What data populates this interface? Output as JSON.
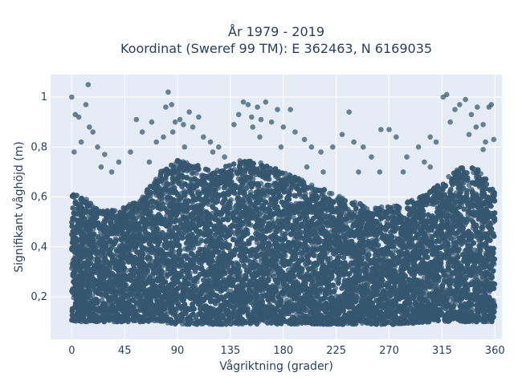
{
  "chart_data": {
    "type": "scatter",
    "title": "År 1979 - 2019",
    "subtitle": "Koordinat (Sweref 99 TM): E 362463, N 6169035",
    "xlabel": "Vågriktning (grader)",
    "ylabel": "Signifikant våghöjd (m)",
    "xlim": [
      -18,
      366
    ],
    "ylim": [
      0.03,
      1.09
    ],
    "xticks": [
      0,
      45,
      90,
      135,
      180,
      225,
      270,
      315,
      360
    ],
    "xtick_labels": [
      "0",
      "45",
      "90",
      "135",
      "180",
      "225",
      "270",
      "315",
      "360"
    ],
    "yticks": [
      0.2,
      0.4,
      0.6,
      0.8,
      1
    ],
    "ytick_labels": [
      "0,2",
      "0,4",
      "0,6",
      "0,8",
      "1"
    ],
    "grid": true,
    "marker_color": "#34566f",
    "plot_bg": "#e5ecf6",
    "density_band": {
      "note": "dense cloud of points; approximate lower and upper envelope of the bulk per direction",
      "x": [
        0,
        10,
        20,
        30,
        45,
        60,
        75,
        90,
        105,
        120,
        135,
        150,
        165,
        180,
        195,
        210,
        225,
        240,
        255,
        270,
        285,
        300,
        315,
        330,
        345,
        360
      ],
      "y_low": [
        0.1,
        0.1,
        0.1,
        0.1,
        0.1,
        0.1,
        0.1,
        0.09,
        0.09,
        0.09,
        0.09,
        0.09,
        0.09,
        0.09,
        0.09,
        0.09,
        0.09,
        0.09,
        0.09,
        0.09,
        0.09,
        0.1,
        0.1,
        0.1,
        0.1,
        0.1
      ],
      "y_high": [
        0.62,
        0.6,
        0.56,
        0.55,
        0.56,
        0.6,
        0.7,
        0.75,
        0.73,
        0.7,
        0.73,
        0.76,
        0.73,
        0.7,
        0.67,
        0.64,
        0.61,
        0.58,
        0.56,
        0.56,
        0.58,
        0.61,
        0.66,
        0.72,
        0.72,
        0.62
      ]
    },
    "outliers": [
      [
        0,
        1.0
      ],
      [
        3,
        0.93
      ],
      [
        6,
        0.92
      ],
      [
        12,
        0.97
      ],
      [
        14,
        1.05
      ],
      [
        15,
        0.88
      ],
      [
        18,
        0.86
      ],
      [
        8,
        0.82
      ],
      [
        22,
        0.8
      ],
      [
        28,
        0.77
      ],
      [
        40,
        0.74
      ],
      [
        50,
        0.78
      ],
      [
        55,
        0.91
      ],
      [
        60,
        0.86
      ],
      [
        68,
        0.9
      ],
      [
        72,
        0.82
      ],
      [
        78,
        0.84
      ],
      [
        80,
        0.96
      ],
      [
        82,
        1.02
      ],
      [
        85,
        0.97
      ],
      [
        88,
        0.9
      ],
      [
        92,
        0.91
      ],
      [
        95,
        0.89
      ],
      [
        100,
        0.94
      ],
      [
        103,
        0.88
      ],
      [
        108,
        0.92
      ],
      [
        112,
        0.84
      ],
      [
        118,
        0.82
      ],
      [
        125,
        0.8
      ],
      [
        138,
        0.89
      ],
      [
        142,
        0.93
      ],
      [
        146,
        0.98
      ],
      [
        150,
        0.97
      ],
      [
        153,
        0.92
      ],
      [
        158,
        0.96
      ],
      [
        161,
        0.91
      ],
      [
        165,
        0.98
      ],
      [
        170,
        0.9
      ],
      [
        175,
        0.95
      ],
      [
        180,
        0.88
      ],
      [
        186,
        0.95
      ],
      [
        190,
        0.86
      ],
      [
        198,
        0.83
      ],
      [
        204,
        0.8
      ],
      [
        212,
        0.78
      ],
      [
        222,
        0.8
      ],
      [
        230,
        0.85
      ],
      [
        236,
        0.94
      ],
      [
        240,
        0.82
      ],
      [
        248,
        0.8
      ],
      [
        255,
        0.76
      ],
      [
        263,
        0.87
      ],
      [
        270,
        0.87
      ],
      [
        276,
        0.84
      ],
      [
        285,
        0.76
      ],
      [
        295,
        0.8
      ],
      [
        305,
        0.84
      ],
      [
        310,
        0.82
      ],
      [
        316,
        1.0
      ],
      [
        319,
        1.01
      ],
      [
        322,
        0.9
      ],
      [
        326,
        0.95
      ],
      [
        330,
        0.97
      ],
      [
        335,
        0.99
      ],
      [
        340,
        0.93
      ],
      [
        345,
        0.96
      ],
      [
        350,
        0.89
      ],
      [
        355,
        0.96
      ],
      [
        357,
        0.97
      ],
      [
        359,
        0.83
      ],
      [
        338,
        0.85
      ],
      [
        344,
        0.88
      ],
      [
        350,
        0.79
      ],
      [
        305,
        0.72
      ],
      [
        120,
        0.78
      ],
      [
        160,
        0.84
      ],
      [
        200,
        0.72
      ],
      [
        25,
        0.72
      ],
      [
        34,
        0.7
      ],
      [
        66,
        0.74
      ],
      [
        96,
        0.8
      ],
      [
        130,
        0.76
      ],
      [
        178,
        0.8
      ],
      [
        214,
        0.7
      ],
      [
        244,
        0.7
      ],
      [
        262,
        0.7
      ],
      [
        282,
        0.7
      ],
      [
        300,
        0.74
      ],
      [
        352,
        0.82
      ],
      [
        2,
        0.78
      ],
      [
        86,
        0.86
      ],
      [
        154,
        0.88
      ]
    ]
  }
}
